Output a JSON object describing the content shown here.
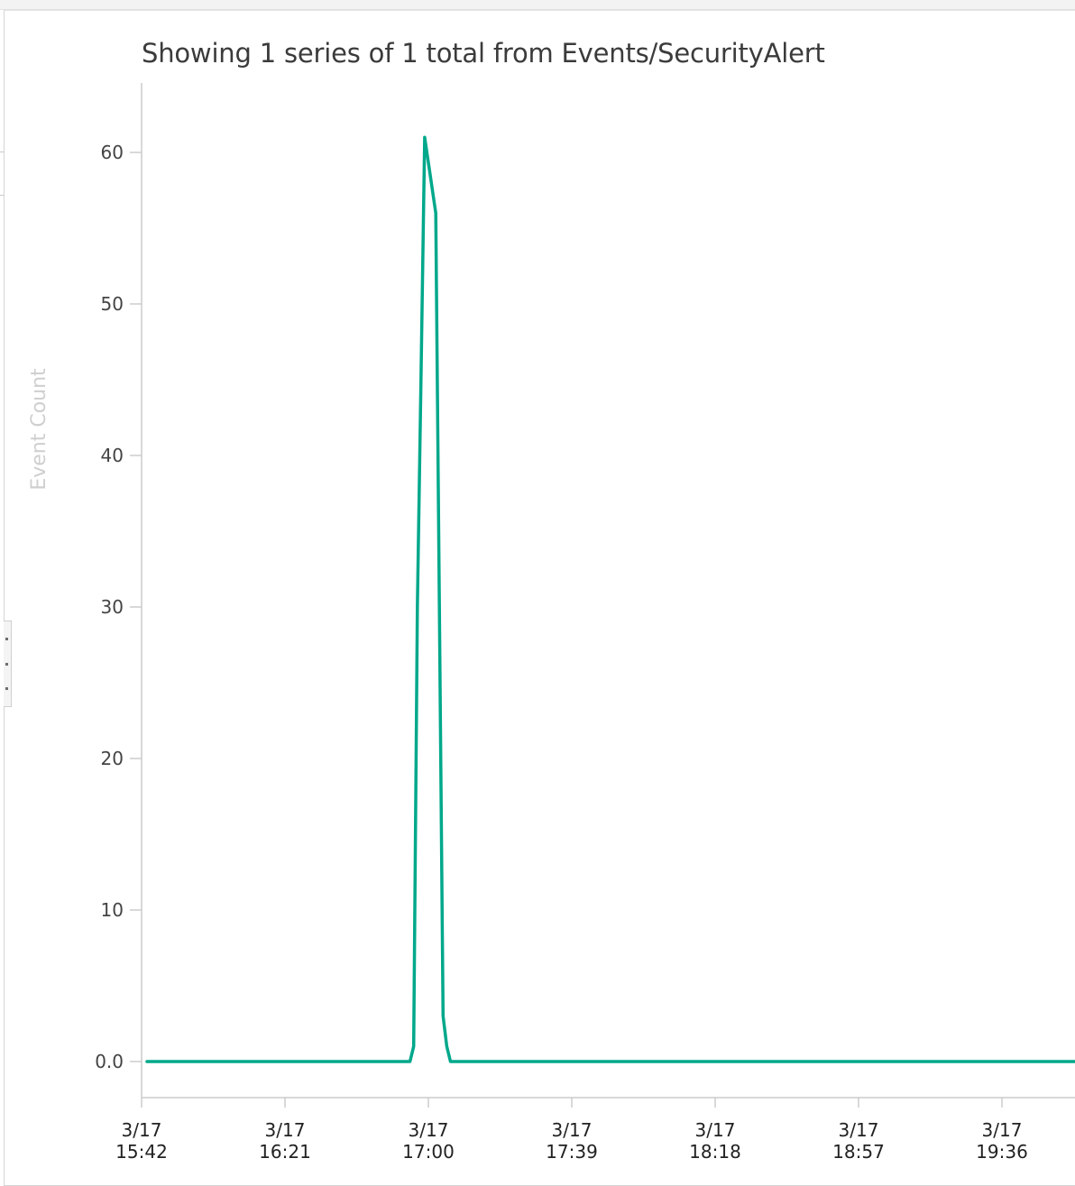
{
  "chart_data": {
    "type": "line",
    "title": "Showing 1 series of 1 total from Events/SecurityAlert",
    "ylabel": "Event Count",
    "xlabel": "",
    "ylim": [
      0,
      64
    ],
    "yticks": [
      0,
      10,
      20,
      30,
      40,
      50,
      60
    ],
    "ytick_labels": [
      "0.0",
      "10",
      "20",
      "30",
      "40",
      "50",
      "60"
    ],
    "xticks": [
      {
        "date": "3/17",
        "time": "15:42"
      },
      {
        "date": "3/17",
        "time": "16:21"
      },
      {
        "date": "3/17",
        "time": "17:00"
      },
      {
        "date": "3/17",
        "time": "17:39"
      },
      {
        "date": "3/17",
        "time": "18:18"
      },
      {
        "date": "3/17",
        "time": "18:57"
      },
      {
        "date": "3/17",
        "time": "19:36"
      }
    ],
    "grid": false,
    "series": [
      {
        "color": "#00a88b",
        "points": [
          {
            "t": "15:42",
            "y": 0
          },
          {
            "t": "16:55",
            "y": 0
          },
          {
            "t": "16:56",
            "y": 1
          },
          {
            "t": "16:57",
            "y": 30
          },
          {
            "t": "16:58",
            "y": 45
          },
          {
            "t": "16:59",
            "y": 61
          },
          {
            "t": "17:02",
            "y": 56
          },
          {
            "t": "17:03",
            "y": 30
          },
          {
            "t": "17:04",
            "y": 3
          },
          {
            "t": "17:05",
            "y": 1
          },
          {
            "t": "17:06",
            "y": 0
          },
          {
            "t": "20:00",
            "y": 0
          }
        ]
      }
    ]
  }
}
